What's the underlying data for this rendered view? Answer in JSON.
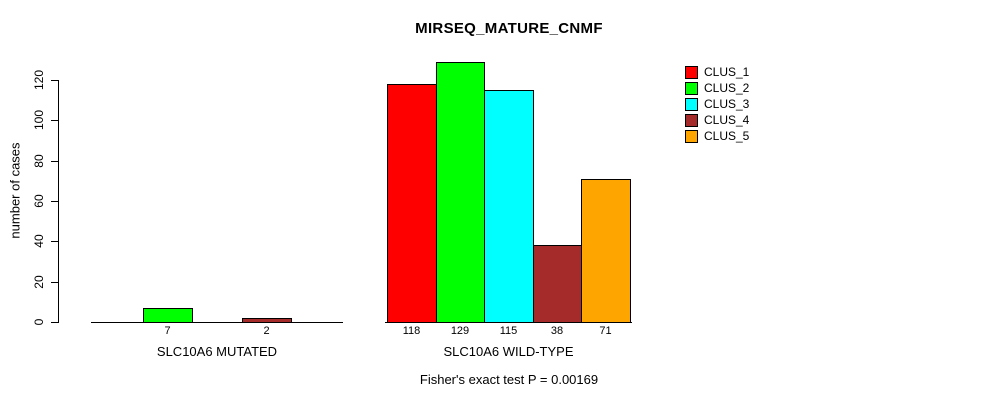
{
  "chart_data": {
    "type": "bar",
    "title": "MIRSEQ_MATURE_CNMF",
    "ylabel": "number of cases",
    "xlabel": "",
    "subtitle": "Fisher's exact test P = 0.00169",
    "categories": [
      "SLC10A6 MUTATED",
      "SLC10A6 WILD-TYPE"
    ],
    "series": [
      {
        "name": "CLUS_1",
        "color": "#ff0000",
        "values": [
          0,
          118
        ]
      },
      {
        "name": "CLUS_2",
        "color": "#00ff00",
        "values": [
          7,
          129
        ]
      },
      {
        "name": "CLUS_3",
        "color": "#00ffff",
        "values": [
          0,
          115
        ]
      },
      {
        "name": "CLUS_4",
        "color": "#a52a2a",
        "values": [
          2,
          38
        ]
      },
      {
        "name": "CLUS_5",
        "color": "#ffa500",
        "values": [
          0,
          71
        ]
      }
    ],
    "bar_value_labels": [
      [
        null,
        7,
        null,
        2,
        null
      ],
      [
        118,
        129,
        115,
        38,
        71
      ]
    ],
    "yticks": [
      0,
      20,
      40,
      60,
      80,
      100,
      120
    ],
    "ylim": [
      0,
      129
    ],
    "grid": false,
    "background_color": "#ffffff",
    "axis_color": "#000000",
    "legend": {
      "position": "top-right",
      "entries": [
        "CLUS_1",
        "CLUS_2",
        "CLUS_3",
        "CLUS_4",
        "CLUS_5"
      ]
    }
  }
}
